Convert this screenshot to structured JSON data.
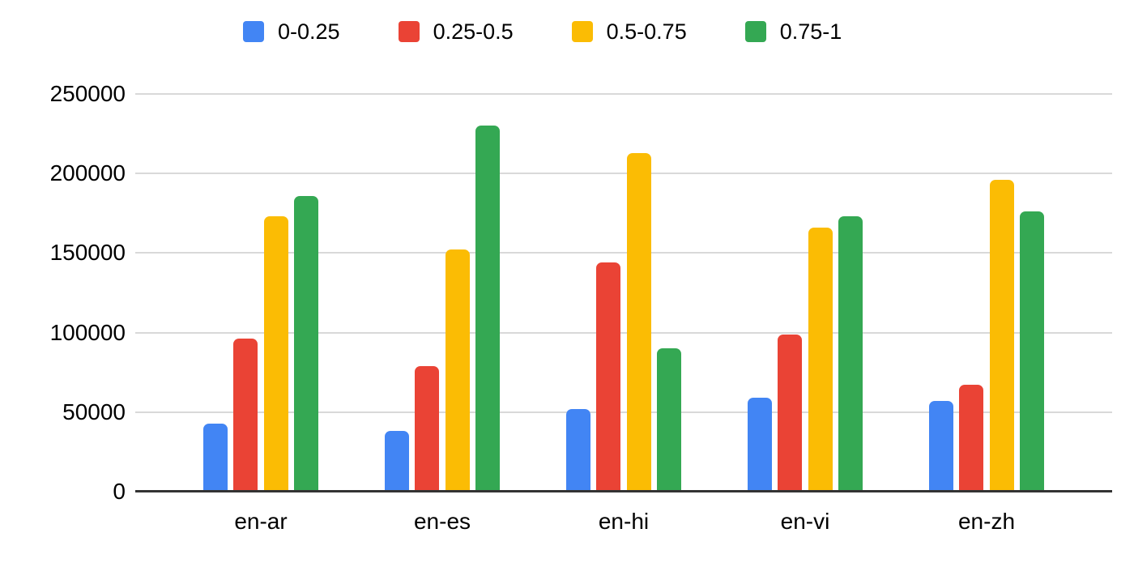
{
  "chart_data": {
    "type": "bar",
    "title": "",
    "categories": [
      "en-ar",
      "en-es",
      "en-hi",
      "en-vi",
      "en-zh"
    ],
    "series": [
      {
        "name": "0-0.25",
        "color": "#4285F4",
        "values": [
          43000,
          38000,
          52000,
          59000,
          57000
        ]
      },
      {
        "name": "0.25-0.5",
        "color": "#EA4335",
        "values": [
          96000,
          79000,
          144000,
          99000,
          67000
        ]
      },
      {
        "name": "0.5-0.75",
        "color": "#FBBC04",
        "values": [
          173000,
          152000,
          213000,
          166000,
          196000
        ]
      },
      {
        "name": "0.75-1",
        "color": "#34A853",
        "values": [
          186000,
          230000,
          90000,
          173000,
          176000
        ]
      }
    ],
    "xlabel": "",
    "ylabel": "",
    "ylim": [
      0,
      250000
    ],
    "ytick_step": 50000,
    "ytick_labels": [
      "0",
      "50000",
      "100000",
      "150000",
      "200000",
      "250000"
    ],
    "grid": true,
    "legend_position": "top",
    "gridline_color": "#d9d9d9",
    "axis_line_color": "#333333",
    "text_color": "#000000",
    "background_color": "#ffffff"
  }
}
